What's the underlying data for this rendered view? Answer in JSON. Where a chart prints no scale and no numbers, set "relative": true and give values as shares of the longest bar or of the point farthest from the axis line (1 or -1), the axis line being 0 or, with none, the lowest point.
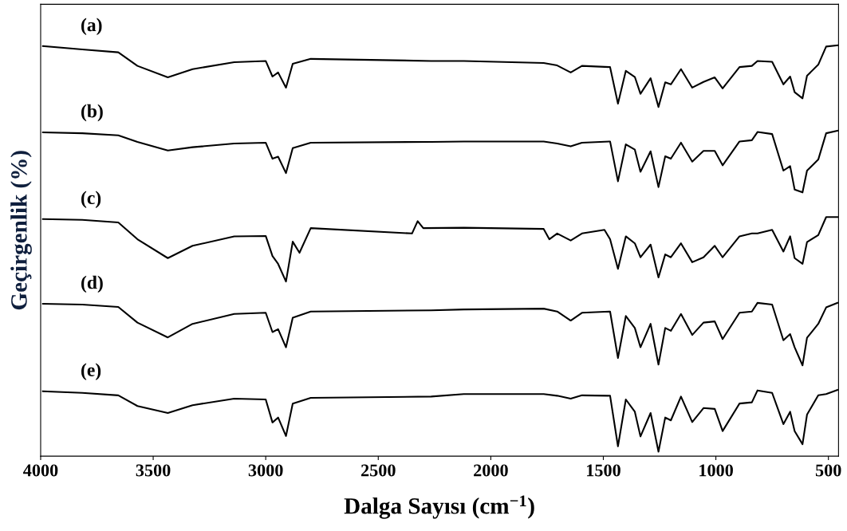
{
  "chart_data": {
    "type": "line",
    "xlabel": "Dalga Sayısı (cm$^{−1}$)",
    "ylabel": "Geçirgenlik (%)",
    "relative": true,
    "xlim": [
      4000,
      455
    ],
    "xticks": [
      4000,
      3500,
      3000,
      2500,
      2000,
      1500,
      1000,
      500
    ],
    "grid": false,
    "legend": false,
    "marker": "none",
    "line_style": "solid",
    "x": [
      3990,
      3815,
      3655,
      3570,
      3435,
      3325,
      3140,
      3000,
      2970,
      2945,
      2910,
      2880,
      2800,
      2265,
      2120,
      1765,
      1705,
      1645,
      1595,
      1470,
      1435,
      1400,
      1360,
      1335,
      1290,
      1255,
      1225,
      1200,
      1155,
      1105,
      1055,
      1005,
      970,
      895,
      840,
      815,
      750,
      700,
      670,
      650,
      615,
      595,
      545,
      510,
      460
    ],
    "series": [
      {
        "name": "(a)",
        "color": "#000000",
        "values": [
          0.998,
          0.99,
          0.983,
          0.95,
          0.922,
          0.942,
          0.959,
          0.962,
          0.924,
          0.934,
          0.897,
          0.955,
          0.967,
          0.962,
          0.962,
          0.957,
          0.951,
          0.934,
          0.95,
          0.947,
          0.858,
          0.938,
          0.923,
          0.882,
          0.92,
          0.85,
          0.91,
          0.905,
          0.942,
          0.897,
          0.911,
          0.922,
          0.895,
          0.947,
          0.95,
          0.962,
          0.96,
          0.905,
          0.924,
          0.886,
          0.871,
          0.926,
          0.953,
          0.997,
          1.0
        ]
      },
      {
        "name": "(b)",
        "color": "#000000",
        "values": [
          0.788,
          0.786,
          0.781,
          0.765,
          0.744,
          0.752,
          0.761,
          0.763,
          0.724,
          0.729,
          0.689,
          0.75,
          0.763,
          0.765,
          0.766,
          0.766,
          0.761,
          0.754,
          0.763,
          0.766,
          0.669,
          0.759,
          0.746,
          0.692,
          0.742,
          0.655,
          0.73,
          0.724,
          0.763,
          0.717,
          0.743,
          0.743,
          0.708,
          0.766,
          0.769,
          0.789,
          0.784,
          0.695,
          0.706,
          0.649,
          0.642,
          0.695,
          0.722,
          0.786,
          0.792
        ]
      },
      {
        "name": "(c)",
        "color": "#000000",
        "x": [
          3990,
          3815,
          3655,
          3570,
          3435,
          3325,
          3140,
          3000,
          2970,
          2945,
          2910,
          2880,
          2850,
          2800,
          2350,
          2325,
          2300,
          2120,
          1765,
          1740,
          1705,
          1645,
          1595,
          1495,
          1470,
          1435,
          1400,
          1360,
          1335,
          1290,
          1255,
          1225,
          1200,
          1155,
          1105,
          1055,
          1005,
          970,
          895,
          840,
          815,
          750,
          700,
          670,
          650,
          615,
          595,
          545,
          510,
          460
        ],
        "values": [
          0.577,
          0.575,
          0.569,
          0.528,
          0.482,
          0.512,
          0.535,
          0.536,
          0.487,
          0.468,
          0.425,
          0.522,
          0.495,
          0.555,
          0.542,
          0.572,
          0.555,
          0.556,
          0.553,
          0.528,
          0.542,
          0.525,
          0.542,
          0.551,
          0.528,
          0.456,
          0.535,
          0.518,
          0.484,
          0.515,
          0.435,
          0.491,
          0.484,
          0.518,
          0.472,
          0.484,
          0.512,
          0.484,
          0.535,
          0.542,
          0.542,
          0.551,
          0.498,
          0.535,
          0.482,
          0.468,
          0.521,
          0.538,
          0.582,
          0.582
        ]
      },
      {
        "name": "(d)",
        "color": "#000000",
        "values": [
          0.371,
          0.369,
          0.363,
          0.325,
          0.289,
          0.322,
          0.346,
          0.349,
          0.302,
          0.309,
          0.265,
          0.337,
          0.352,
          0.355,
          0.357,
          0.359,
          0.352,
          0.33,
          0.349,
          0.352,
          0.239,
          0.341,
          0.312,
          0.265,
          0.322,
          0.223,
          0.312,
          0.305,
          0.346,
          0.295,
          0.325,
          0.328,
          0.285,
          0.349,
          0.352,
          0.373,
          0.369,
          0.282,
          0.297,
          0.265,
          0.221,
          0.288,
          0.322,
          0.362,
          0.373
        ]
      },
      {
        "name": "(e)",
        "color": "#000000",
        "values": [
          0.158,
          0.154,
          0.148,
          0.122,
          0.105,
          0.124,
          0.14,
          0.138,
          0.082,
          0.094,
          0.049,
          0.128,
          0.142,
          0.145,
          0.151,
          0.151,
          0.147,
          0.14,
          0.148,
          0.147,
          0.024,
          0.138,
          0.108,
          0.048,
          0.105,
          0.011,
          0.094,
          0.087,
          0.145,
          0.083,
          0.117,
          0.115,
          0.061,
          0.128,
          0.131,
          0.16,
          0.154,
          0.078,
          0.108,
          0.061,
          0.029,
          0.101,
          0.148,
          0.151,
          0.161
        ]
      }
    ]
  }
}
